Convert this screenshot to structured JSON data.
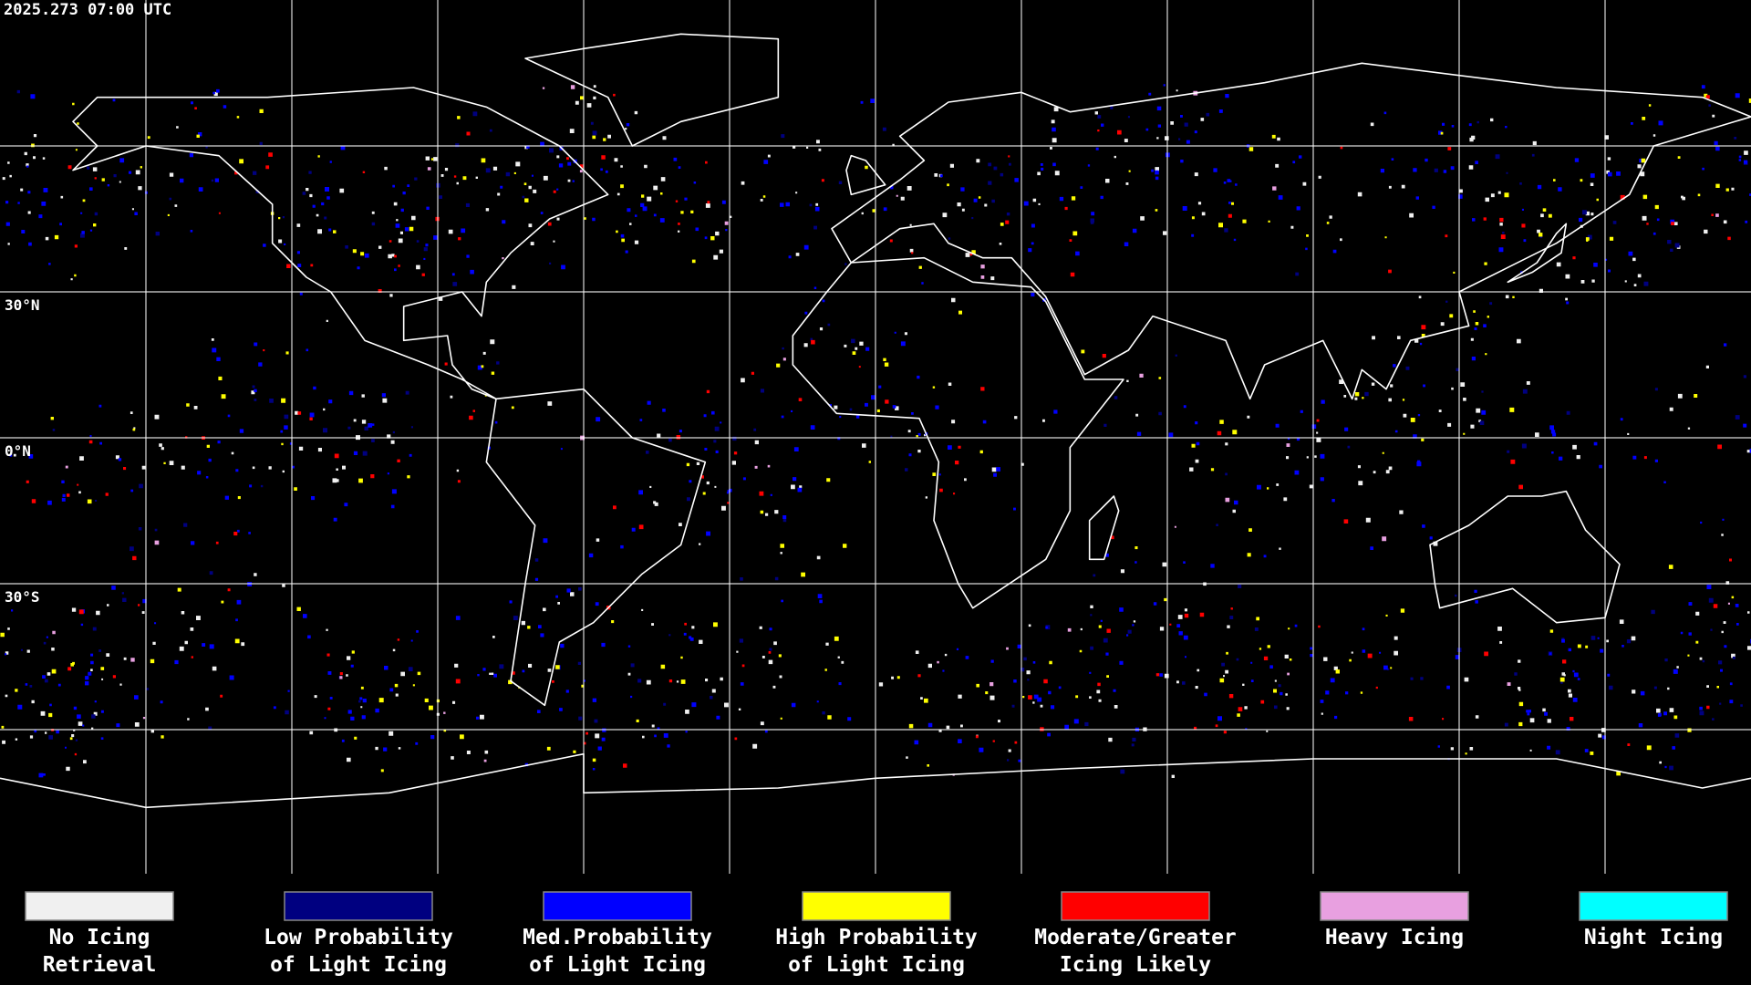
{
  "header": {
    "timestamp": "2025.273 07:00 UTC"
  },
  "grid": {
    "lat_labels": [
      "30°N",
      "0°N",
      "30°S"
    ]
  },
  "legend": {
    "items": [
      {
        "lines": [
          "No Icing",
          "Retrieval"
        ],
        "color": "#f0f0f0"
      },
      {
        "lines": [
          "Low Probability",
          "of Light Icing"
        ],
        "color": "#000080"
      },
      {
        "lines": [
          "Med.Probability",
          "of Light Icing"
        ],
        "color": "#0000ff"
      },
      {
        "lines": [
          "High Probability",
          "of Light Icing"
        ],
        "color": "#ffff00"
      },
      {
        "lines": [
          "Moderate/Greater",
          "Icing Likely"
        ],
        "color": "#ff0000"
      },
      {
        "lines": [
          "Heavy Icing"
        ],
        "color": "#e8a0e0"
      },
      {
        "lines": [
          "Night Icing"
        ],
        "color": "#00ffff"
      }
    ]
  }
}
